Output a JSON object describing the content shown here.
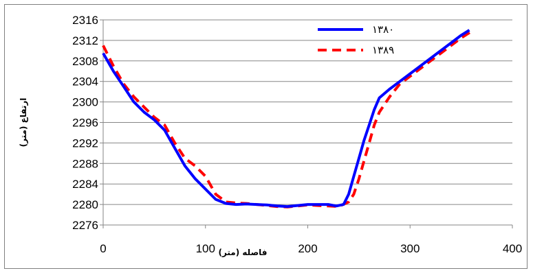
{
  "chart_data": {
    "type": "line",
    "xlabel": "فاصله (متر)",
    "ylabel": "ارتفاع (متر)",
    "xlim": [
      0,
      400
    ],
    "ylim": [
      2276,
      2316
    ],
    "x_ticks": [
      "0",
      "100",
      "200",
      "300",
      "400"
    ],
    "y_ticks": [
      "2276",
      "2280",
      "2284",
      "2288",
      "2292",
      "2296",
      "2300",
      "2304",
      "2308",
      "2312",
      "2316"
    ],
    "grid": "horizontal",
    "legend_position": "top-right",
    "series": [
      {
        "name": "۱۳۸۰",
        "color": "#0000ff",
        "style": "solid",
        "points": [
          [
            0,
            2309.5
          ],
          [
            10,
            2306
          ],
          [
            20,
            2303
          ],
          [
            30,
            2300
          ],
          [
            40,
            2298
          ],
          [
            50,
            2296.5
          ],
          [
            60,
            2294.5
          ],
          [
            70,
            2291
          ],
          [
            80,
            2287.5
          ],
          [
            90,
            2285
          ],
          [
            100,
            2283
          ],
          [
            110,
            2281
          ],
          [
            120,
            2280.2
          ],
          [
            130,
            2280
          ],
          [
            140,
            2280.1
          ],
          [
            150,
            2280
          ],
          [
            160,
            2279.9
          ],
          [
            170,
            2279.7
          ],
          [
            180,
            2279.6
          ],
          [
            190,
            2279.8
          ],
          [
            200,
            2280
          ],
          [
            210,
            2280
          ],
          [
            220,
            2280
          ],
          [
            228,
            2279.7
          ],
          [
            235,
            2280
          ],
          [
            240,
            2282
          ],
          [
            245,
            2285.5
          ],
          [
            250,
            2289
          ],
          [
            255,
            2292.5
          ],
          [
            260,
            2295.5
          ],
          [
            265,
            2298.5
          ],
          [
            270,
            2300.8
          ],
          [
            280,
            2302.5
          ],
          [
            290,
            2304
          ],
          [
            300,
            2305.5
          ],
          [
            310,
            2307
          ],
          [
            320,
            2308.5
          ],
          [
            330,
            2310
          ],
          [
            340,
            2311.5
          ],
          [
            350,
            2313
          ],
          [
            358,
            2314
          ]
        ]
      },
      {
        "name": "۱۳۸۹",
        "color": "#ff0000",
        "style": "dashed",
        "points": [
          [
            0,
            2311
          ],
          [
            10,
            2307
          ],
          [
            20,
            2303.5
          ],
          [
            30,
            2301
          ],
          [
            40,
            2299
          ],
          [
            50,
            2297
          ],
          [
            60,
            2295.5
          ],
          [
            70,
            2292
          ],
          [
            80,
            2289
          ],
          [
            90,
            2287.5
          ],
          [
            100,
            2285.5
          ],
          [
            110,
            2282
          ],
          [
            120,
            2280.5
          ],
          [
            130,
            2280.3
          ],
          [
            140,
            2280.2
          ],
          [
            150,
            2280
          ],
          [
            160,
            2279.8
          ],
          [
            170,
            2279.6
          ],
          [
            180,
            2279.5
          ],
          [
            190,
            2279.7
          ],
          [
            200,
            2279.9
          ],
          [
            210,
            2279.8
          ],
          [
            220,
            2279.7
          ],
          [
            230,
            2279.6
          ],
          [
            240,
            2280.5
          ],
          [
            245,
            2282
          ],
          [
            250,
            2285
          ],
          [
            255,
            2288.5
          ],
          [
            260,
            2292
          ],
          [
            265,
            2295.5
          ],
          [
            270,
            2298
          ],
          [
            280,
            2301
          ],
          [
            290,
            2303.5
          ],
          [
            300,
            2305
          ],
          [
            310,
            2306.5
          ],
          [
            320,
            2308
          ],
          [
            330,
            2309.5
          ],
          [
            340,
            2311
          ],
          [
            350,
            2312.5
          ],
          [
            362,
            2314
          ]
        ]
      }
    ]
  }
}
